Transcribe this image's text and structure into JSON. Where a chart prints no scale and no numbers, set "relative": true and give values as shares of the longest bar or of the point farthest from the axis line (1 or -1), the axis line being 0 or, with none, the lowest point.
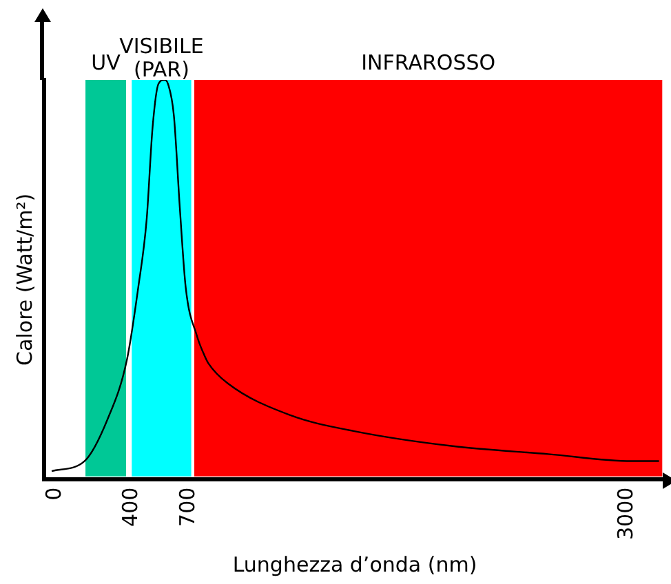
{
  "chart_data": {
    "type": "line",
    "relative": true,
    "xlabel": "Lunghezza d’onda (nm)",
    "ylabel": "Calore (Watt/m²)",
    "xlim": [
      -60,
      3200
    ],
    "xticks": [
      0,
      400,
      700,
      3000
    ],
    "grid": false,
    "legend": false,
    "marker": "none",
    "line_style": "solid",
    "series": [
      {
        "color": "#000000",
        "x": [
          -20,
          152,
          273,
          375,
          434,
          478,
          509,
          540,
          571,
          590,
          621,
          652,
          683,
          741,
          781,
          802,
          903,
          1232,
          1568,
          2076,
          2585,
          3023,
          3166
        ],
        "values": [
          0.02,
          0.045,
          0.15,
          0.3,
          0.48,
          0.65,
          0.88,
          0.99,
          1,
          0.99,
          0.91,
          0.68,
          0.48,
          0.36,
          0.31,
          0.29,
          0.24,
          0.16,
          0.12,
          0.083,
          0.0625,
          0.045,
          0.045
        ]
      }
    ],
    "bands": [
      {
        "axis": "x",
        "from": 157,
        "to": 370,
        "label": "UV",
        "color": "#00c896"
      },
      {
        "axis": "x",
        "from": 400,
        "to": 712,
        "label": "VISIBILE (PAR)",
        "color": "#00ffff"
      },
      {
        "axis": "x",
        "from": 728,
        "to": 3183,
        "label": "INFRAROSSO",
        "color": "#ff0000"
      }
    ]
  }
}
